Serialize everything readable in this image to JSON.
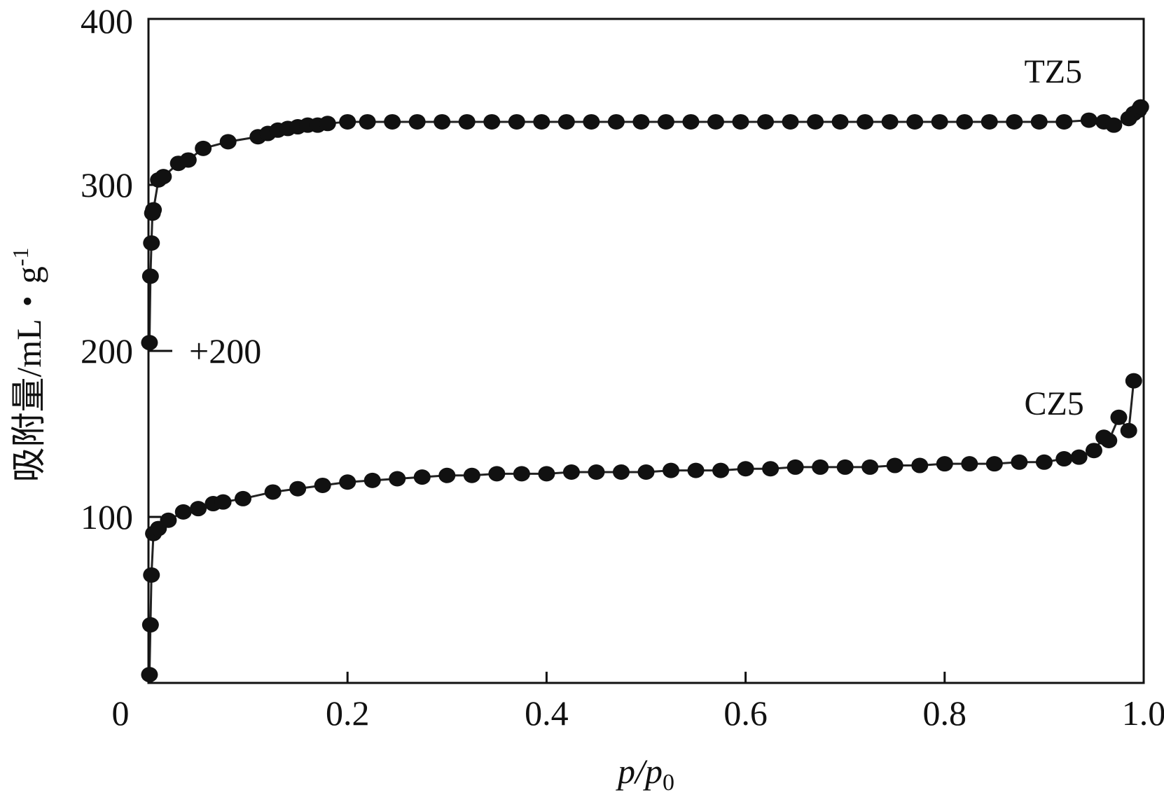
{
  "chart_data": {
    "type": "scatter",
    "title": "",
    "xlabel": "p/p",
    "xlabel_sub": "0",
    "ylabel": "吸附量/mL・g",
    "ylabel_sup": "-1",
    "xlim": [
      0,
      1.0
    ],
    "ylim": [
      0,
      400
    ],
    "x_ticks": [
      0,
      0.2,
      0.4,
      0.6,
      0.8,
      1.0
    ],
    "x_tick_labels": [
      "0",
      "0.2",
      "0.4",
      "0.6",
      "0.8",
      "1.0"
    ],
    "y_ticks": [
      100,
      200,
      300,
      400
    ],
    "y_tick_labels": [
      "100",
      "200",
      "300",
      "400"
    ],
    "grid": false,
    "annotation": "+200",
    "annotation_y": 200,
    "series": [
      {
        "name": "TZ5",
        "label_pos": [
          0.88,
          370
        ],
        "x": [
          0.001,
          0.002,
          0.003,
          0.004,
          0.005,
          0.01,
          0.015,
          0.03,
          0.04,
          0.055,
          0.08,
          0.11,
          0.12,
          0.13,
          0.14,
          0.15,
          0.16,
          0.17,
          0.18,
          0.2,
          0.22,
          0.245,
          0.27,
          0.295,
          0.32,
          0.345,
          0.37,
          0.395,
          0.42,
          0.445,
          0.47,
          0.495,
          0.52,
          0.545,
          0.57,
          0.595,
          0.62,
          0.645,
          0.67,
          0.695,
          0.72,
          0.745,
          0.77,
          0.795,
          0.82,
          0.845,
          0.87,
          0.895,
          0.92,
          0.945,
          0.96,
          0.97,
          0.985,
          0.99,
          0.995,
          0.997
        ],
        "y": [
          205,
          245,
          265,
          283,
          285,
          303,
          305,
          313,
          315,
          322,
          326,
          329,
          331,
          333,
          334,
          335,
          336,
          336,
          337,
          338,
          338,
          338,
          338,
          338,
          338,
          338,
          338,
          338,
          338,
          338,
          338,
          338,
          338,
          338,
          338,
          338,
          338,
          338,
          338,
          338,
          338,
          338,
          338,
          338,
          338,
          338,
          338,
          338,
          338,
          339,
          338,
          336,
          340,
          343,
          345,
          347
        ]
      },
      {
        "name": "CZ5",
        "label_pos": [
          0.88,
          170
        ],
        "x": [
          0.001,
          0.002,
          0.003,
          0.005,
          0.01,
          0.02,
          0.035,
          0.05,
          0.065,
          0.075,
          0.095,
          0.125,
          0.15,
          0.175,
          0.2,
          0.225,
          0.25,
          0.275,
          0.3,
          0.325,
          0.35,
          0.375,
          0.4,
          0.425,
          0.45,
          0.475,
          0.5,
          0.525,
          0.55,
          0.575,
          0.6,
          0.625,
          0.65,
          0.675,
          0.7,
          0.725,
          0.75,
          0.775,
          0.8,
          0.825,
          0.85,
          0.875,
          0.9,
          0.92,
          0.935,
          0.95,
          0.96,
          0.965,
          0.975,
          0.985,
          0.99
        ],
        "y": [
          5,
          35,
          65,
          90,
          93,
          98,
          103,
          105,
          108,
          109,
          111,
          115,
          117,
          119,
          121,
          122,
          123,
          124,
          125,
          125,
          126,
          126,
          126,
          127,
          127,
          127,
          127,
          128,
          128,
          128,
          129,
          129,
          130,
          130,
          130,
          130,
          131,
          131,
          132,
          132,
          132,
          133,
          133,
          135,
          136,
          140,
          148,
          146,
          160,
          152,
          182
        ]
      }
    ]
  }
}
